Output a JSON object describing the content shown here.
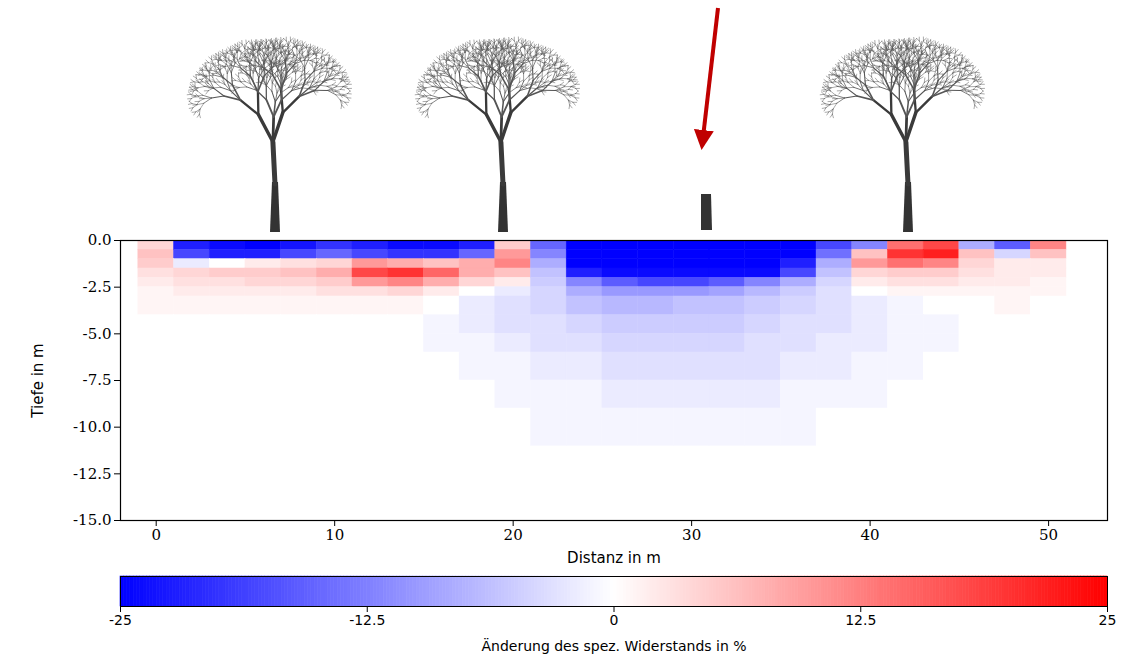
{
  "chart_data": {
    "type": "heatmap",
    "x_label": "Distanz in m",
    "y_label": "Tiefe in m",
    "xlim": [
      -2,
      53.3
    ],
    "ylim": [
      -15,
      0
    ],
    "xticks": [
      0,
      10,
      20,
      30,
      40,
      50
    ],
    "yticks": [
      {
        "value": 0,
        "label": "0.0"
      },
      -2.5,
      {
        "value": -5,
        "label": "-5.0"
      },
      -7.5,
      {
        "value": -10,
        "label": "-10.0"
      },
      -12.5,
      {
        "value": -15,
        "label": "-15.0"
      }
    ],
    "x_edges": [
      -1,
      1,
      3,
      5,
      7,
      9,
      11,
      13,
      15,
      17,
      19,
      21,
      23,
      25,
      27,
      29,
      31,
      33,
      35,
      37,
      39,
      41,
      43,
      45,
      47,
      49,
      51
    ],
    "y_edges": [
      0,
      -0.5,
      -1,
      -1.5,
      -2,
      -2.5,
      -3,
      -4,
      -5,
      -6,
      -7.5,
      -9,
      -11
    ],
    "cells": [
      [
        4,
        -22,
        -24,
        -25,
        -23,
        -20,
        -22,
        -24,
        -24,
        -22,
        5,
        -15,
        -25,
        -25,
        -25,
        -25,
        -25,
        -25,
        -25,
        -18,
        -12,
        14,
        18,
        -8,
        -16,
        12
      ],
      [
        6,
        -18,
        -22,
        -22,
        -18,
        -15,
        -18,
        -20,
        -20,
        -15,
        10,
        -12,
        -25,
        -25,
        -25,
        -25,
        -25,
        -25,
        -25,
        -14,
        6,
        20,
        22,
        6,
        -4,
        6
      ],
      [
        5,
        -2,
        0,
        2,
        3,
        4,
        10,
        8,
        6,
        8,
        12,
        -8,
        -25,
        -25,
        -25,
        -25,
        -25,
        -25,
        -22,
        -8,
        10,
        14,
        12,
        4,
        2,
        2
      ],
      [
        3,
        4,
        5,
        5,
        6,
        8,
        18,
        20,
        15,
        8,
        6,
        -6,
        -22,
        -24,
        -24,
        -24,
        -24,
        -24,
        -18,
        -6,
        4,
        5,
        5,
        3,
        2,
        2
      ],
      [
        2,
        3,
        3,
        4,
        4,
        5,
        10,
        12,
        8,
        4,
        2,
        -5,
        -12,
        -16,
        -18,
        -18,
        -16,
        -12,
        -8,
        -4,
        2,
        3,
        3,
        2,
        2,
        1
      ],
      [
        1,
        2,
        2,
        2,
        2,
        3,
        3,
        4,
        2,
        0,
        -2,
        -4,
        -8,
        -10,
        -10,
        -10,
        -9,
        -7,
        -5,
        -3,
        0,
        1,
        1,
        1,
        1,
        1
      ],
      [
        1,
        1,
        1,
        1,
        1,
        1,
        1,
        1,
        0,
        -2,
        -3,
        -4,
        -6,
        -7,
        -7,
        -6,
        -6,
        -5,
        -4,
        -3,
        -2,
        -1,
        0,
        0,
        1,
        0
      ],
      [
        0,
        0,
        0,
        0,
        0,
        0,
        0,
        0,
        -1,
        -2,
        -3,
        -3,
        -4,
        -5,
        -5,
        -5,
        -5,
        -4,
        -3,
        -3,
        -2,
        -1,
        -1,
        0,
        0,
        0
      ],
      [
        0,
        0,
        0,
        0,
        0,
        0,
        0,
        0,
        -1,
        -1,
        -2,
        -3,
        -3,
        -4,
        -4,
        -4,
        -4,
        -3,
        -3,
        -2,
        -2,
        -1,
        -1,
        0,
        0,
        0
      ],
      [
        0,
        0,
        0,
        0,
        0,
        0,
        0,
        0,
        0,
        -1,
        -1,
        -2,
        -2,
        -3,
        -3,
        -3,
        -3,
        -3,
        -2,
        -2,
        -1,
        -1,
        0,
        0,
        0,
        0
      ],
      [
        0,
        0,
        0,
        0,
        0,
        0,
        0,
        0,
        0,
        0,
        -1,
        -1,
        -1,
        -2,
        -2,
        -2,
        -2,
        -2,
        -1,
        -1,
        -1,
        0,
        0,
        0,
        0,
        0
      ],
      [
        0,
        0,
        0,
        0,
        0,
        0,
        0,
        0,
        0,
        0,
        0,
        -1,
        -1,
        -1,
        -1,
        -1,
        -1,
        -1,
        -1,
        0,
        0,
        0,
        0,
        0,
        0,
        0
      ]
    ],
    "colorbar": {
      "label": "Änderung des spez. Widerstands in %",
      "range": [
        -25,
        25
      ],
      "ticks": [
        -25,
        -12.5,
        0,
        12.5,
        25
      ]
    }
  }
}
